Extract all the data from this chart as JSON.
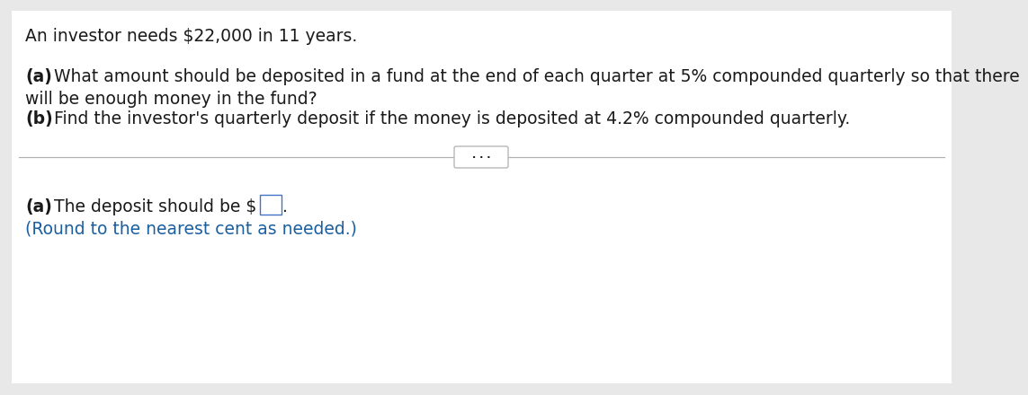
{
  "background_color": "#e8e8e8",
  "main_bg": "#ffffff",
  "line1": "An investor needs $22,000 in 11 years.",
  "line2_bold": "(a)",
  "line2_rest": " What amount should be deposited in a fund at the end of each quarter at 5% compounded quarterly so that there",
  "line3": "will be enough money in the fund?",
  "line4_bold": "(b)",
  "line4_rest": " Find the investor's quarterly deposit if the money is deposited at 4.2% compounded quarterly.",
  "divider_dots": "· · ·",
  "answer_bold": "(a)",
  "answer_rest": " The deposit should be $",
  "answer_note": "(Round to the nearest cent as needed.)",
  "text_color": "#1a1a1a",
  "note_color": "#1a5fa0",
  "font_size_main": 13.5,
  "font_size_note": 13.5,
  "box_edge_color": "#4472c4"
}
